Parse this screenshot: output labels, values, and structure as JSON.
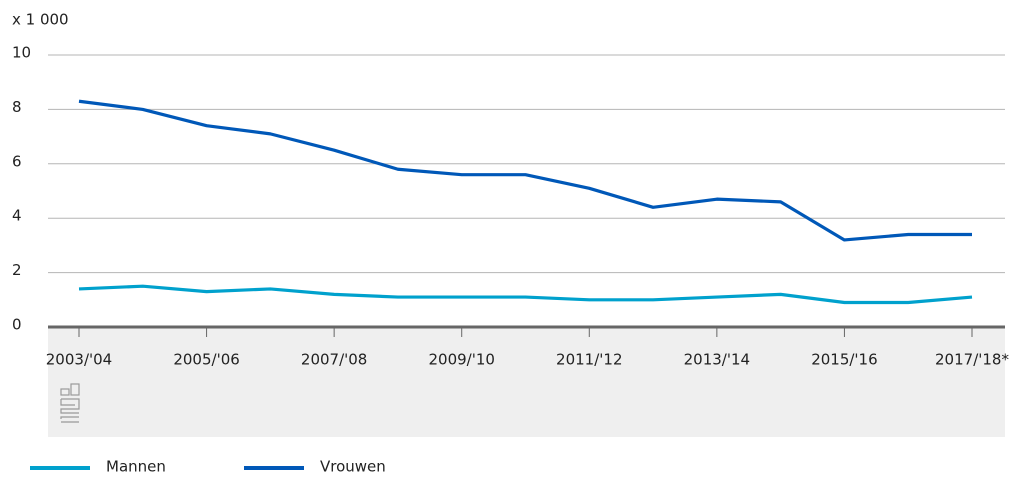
{
  "chart_data": {
    "type": "line",
    "y_unit_label": "x 1 000",
    "categories": [
      "2003/'04",
      null,
      "2005/'06",
      null,
      "2007/'08",
      null,
      "2009/'10",
      null,
      "2011/'12",
      null,
      "2013/'14",
      null,
      "2015/'16",
      null,
      "2017/'18*"
    ],
    "series": [
      {
        "name": "Mannen",
        "color": "#00a1cd",
        "values": [
          1.4,
          1.5,
          1.3,
          1.4,
          1.2,
          1.1,
          1.1,
          1.1,
          1.0,
          1.0,
          1.1,
          1.2,
          0.9,
          0.9,
          1.1
        ]
      },
      {
        "name": "Vrouwen",
        "color": "#0058b8",
        "values": [
          8.3,
          8.0,
          7.4,
          7.1,
          6.5,
          5.8,
          5.6,
          5.6,
          5.1,
          4.4,
          4.7,
          4.6,
          3.2,
          3.4,
          3.4
        ]
      }
    ],
    "ylim": [
      0,
      10
    ],
    "yticks": [
      0,
      2,
      4,
      6,
      8,
      10
    ],
    "grid": true,
    "legend": "bottom"
  }
}
